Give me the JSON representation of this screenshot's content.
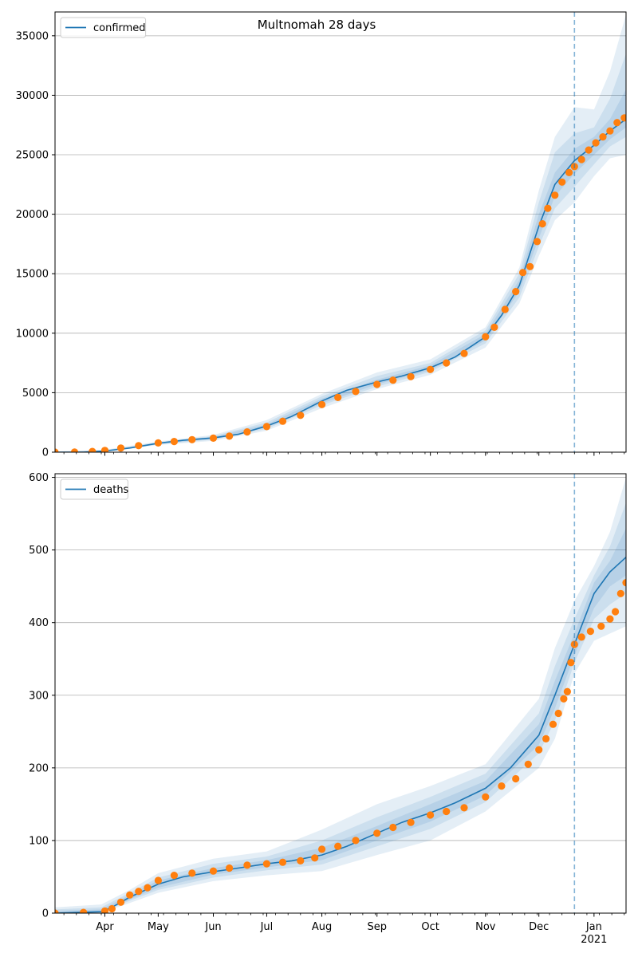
{
  "title": "Multnomah 28 days",
  "colors": {
    "model": "#1f77b4",
    "observed": "#ff7f0e",
    "band": "#1f77b4",
    "grid": "#b0b0b0"
  },
  "chart_data": [
    {
      "type": "line",
      "title": "Multnomah 28 days",
      "legend": [
        "confirmed"
      ],
      "legend_position": "top-left",
      "grid": "horizontal",
      "x_range": [
        "2020-03-04",
        "2021-01-19"
      ],
      "xticks": [
        {
          "date": "2020-04-01",
          "label": "Apr"
        },
        {
          "date": "2020-05-01",
          "label": "May"
        },
        {
          "date": "2020-06-01",
          "label": "Jun"
        },
        {
          "date": "2020-07-01",
          "label": "Jul"
        },
        {
          "date": "2020-08-01",
          "label": "Aug"
        },
        {
          "date": "2020-09-01",
          "label": "Sep"
        },
        {
          "date": "2020-10-01",
          "label": "Oct"
        },
        {
          "date": "2020-11-01",
          "label": "Nov"
        },
        {
          "date": "2020-12-01",
          "label": "Dec"
        },
        {
          "date": "2021-01-01",
          "label": "Jan",
          "sublabel": "2021"
        }
      ],
      "ylim": [
        0,
        37000
      ],
      "yticks": [
        "0",
        "5000",
        "10000",
        "15000",
        "20000",
        "25000",
        "30000",
        "35000"
      ],
      "forecast_start": "2020-12-21",
      "series": [
        {
          "name": "confirmed",
          "style": "model-line",
          "x": [
            "2020-03-04",
            "2020-03-20",
            "2020-04-01",
            "2020-04-15",
            "2020-05-01",
            "2020-05-15",
            "2020-06-01",
            "2020-06-15",
            "2020-07-01",
            "2020-07-15",
            "2020-08-01",
            "2020-08-15",
            "2020-09-01",
            "2020-09-15",
            "2020-10-01",
            "2020-10-15",
            "2020-11-01",
            "2020-11-10",
            "2020-11-20",
            "2020-12-01",
            "2020-12-10",
            "2020-12-21",
            "2021-01-01",
            "2021-01-10",
            "2021-01-19"
          ],
          "y": [
            0,
            0,
            100,
            350,
            750,
            1000,
            1200,
            1500,
            2200,
            3000,
            4300,
            5200,
            5900,
            6400,
            7100,
            8000,
            9700,
            11500,
            14000,
            19000,
            22500,
            24500,
            25800,
            27000,
            28000
          ]
        },
        {
          "name": "observed",
          "style": "points",
          "x": [
            "2020-03-04",
            "2020-03-15",
            "2020-03-25",
            "2020-04-01",
            "2020-04-10",
            "2020-04-20",
            "2020-05-01",
            "2020-05-10",
            "2020-05-20",
            "2020-06-01",
            "2020-06-10",
            "2020-06-20",
            "2020-07-01",
            "2020-07-10",
            "2020-07-20",
            "2020-08-01",
            "2020-08-10",
            "2020-08-20",
            "2020-09-01",
            "2020-09-10",
            "2020-09-20",
            "2020-10-01",
            "2020-10-10",
            "2020-10-20",
            "2020-11-01",
            "2020-11-06",
            "2020-11-12",
            "2020-11-18",
            "2020-11-22",
            "2020-11-26",
            "2020-11-30",
            "2020-12-03",
            "2020-12-06",
            "2020-12-10",
            "2020-12-14",
            "2020-12-18",
            "2020-12-21",
            "2020-12-25",
            "2020-12-29",
            "2021-01-02",
            "2021-01-06",
            "2021-01-10",
            "2021-01-14",
            "2021-01-18"
          ],
          "y": [
            0,
            10,
            60,
            150,
            350,
            550,
            780,
            900,
            1050,
            1180,
            1350,
            1700,
            2150,
            2600,
            3100,
            4000,
            4600,
            5100,
            5700,
            6050,
            6350,
            6950,
            7500,
            8300,
            9700,
            10500,
            12000,
            13500,
            15100,
            15600,
            17700,
            19200,
            20500,
            21600,
            22700,
            23500,
            24000,
            24600,
            25400,
            26000,
            26500,
            27000,
            27700,
            28100
          ]
        }
      ],
      "bands": [
        {
          "x": [
            "2020-03-04",
            "2020-04-01",
            "2020-05-01",
            "2020-06-01",
            "2020-07-01",
            "2020-08-01",
            "2020-09-01",
            "2020-10-01",
            "2020-11-01",
            "2020-11-20",
            "2020-12-01",
            "2020-12-10",
            "2020-12-21",
            "2021-01-01",
            "2021-01-10",
            "2021-01-19"
          ],
          "lo": [
            0,
            50,
            600,
            950,
            1800,
            3700,
            5300,
            6500,
            8800,
            12500,
            16500,
            19500,
            21000,
            23200,
            24700,
            25000
          ],
          "hi": [
            50,
            200,
            900,
            1450,
            2700,
            4900,
            6700,
            7800,
            10500,
            15500,
            22000,
            26500,
            29000,
            28800,
            32000,
            36800
          ]
        },
        {
          "x": [
            "2020-03-04",
            "2020-04-01",
            "2020-05-01",
            "2020-06-01",
            "2020-07-01",
            "2020-08-01",
            "2020-09-01",
            "2020-10-01",
            "2020-11-01",
            "2020-11-20",
            "2020-12-01",
            "2020-12-10",
            "2020-12-21",
            "2021-01-01",
            "2021-01-10",
            "2021-01-19"
          ],
          "lo": [
            0,
            70,
            660,
            1050,
            1950,
            3950,
            5500,
            6750,
            9150,
            13000,
            17300,
            20500,
            22300,
            24200,
            25700,
            26500
          ],
          "hi": [
            30,
            170,
            840,
            1350,
            2500,
            4700,
            6400,
            7500,
            10250,
            15000,
            21000,
            25200,
            26800,
            27300,
            29700,
            33500
          ]
        },
        {
          "x": [
            "2020-03-04",
            "2020-04-01",
            "2020-05-01",
            "2020-06-01",
            "2020-07-01",
            "2020-08-01",
            "2020-09-01",
            "2020-10-01",
            "2020-11-01",
            "2020-11-20",
            "2020-12-01",
            "2020-12-10",
            "2020-12-21",
            "2021-01-01",
            "2021-01-10",
            "2021-01-19"
          ],
          "lo": [
            0,
            85,
            710,
            1120,
            2080,
            4100,
            5700,
            6900,
            9400,
            13500,
            18000,
            21500,
            23400,
            25000,
            26300,
            27300
          ],
          "hi": [
            15,
            130,
            790,
            1280,
            2330,
            4500,
            6100,
            7300,
            9950,
            14500,
            20000,
            23500,
            25500,
            26500,
            28000,
            30500
          ]
        }
      ]
    },
    {
      "type": "line",
      "legend": [
        "deaths"
      ],
      "legend_position": "top-left",
      "grid": "horizontal",
      "x_range": [
        "2020-03-04",
        "2021-01-19"
      ],
      "ylim": [
        0,
        605
      ],
      "yticks": [
        "0",
        "100",
        "200",
        "300",
        "400",
        "500",
        "600"
      ],
      "forecast_start": "2020-12-21",
      "series": [
        {
          "name": "deaths",
          "style": "model-line",
          "x": [
            "2020-03-04",
            "2020-03-30",
            "2020-04-05",
            "2020-04-15",
            "2020-05-01",
            "2020-05-15",
            "2020-06-01",
            "2020-06-15",
            "2020-07-01",
            "2020-07-15",
            "2020-08-01",
            "2020-08-15",
            "2020-09-01",
            "2020-09-15",
            "2020-10-01",
            "2020-10-15",
            "2020-11-01",
            "2020-11-15",
            "2020-12-01",
            "2020-12-10",
            "2020-12-21",
            "2021-01-01",
            "2021-01-10",
            "2021-01-19"
          ],
          "y": [
            0,
            2,
            8,
            22,
            40,
            50,
            57,
            62,
            68,
            72,
            80,
            92,
            110,
            125,
            138,
            152,
            172,
            200,
            245,
            300,
            370,
            440,
            470,
            490
          ]
        },
        {
          "name": "observed",
          "style": "points",
          "x": [
            "2020-03-04",
            "2020-03-20",
            "2020-04-01",
            "2020-04-05",
            "2020-04-10",
            "2020-04-15",
            "2020-04-20",
            "2020-04-25",
            "2020-05-01",
            "2020-05-10",
            "2020-05-20",
            "2020-06-01",
            "2020-06-10",
            "2020-06-20",
            "2020-07-01",
            "2020-07-10",
            "2020-07-20",
            "2020-07-28",
            "2020-08-01",
            "2020-08-10",
            "2020-08-20",
            "2020-09-01",
            "2020-09-10",
            "2020-09-20",
            "2020-10-01",
            "2020-10-10",
            "2020-10-20",
            "2020-11-01",
            "2020-11-10",
            "2020-11-18",
            "2020-11-25",
            "2020-12-01",
            "2020-12-05",
            "2020-12-09",
            "2020-12-12",
            "2020-12-15",
            "2020-12-17",
            "2020-12-19",
            "2020-12-21",
            "2020-12-25",
            "2020-12-30",
            "2021-01-05",
            "2021-01-10",
            "2021-01-13",
            "2021-01-16",
            "2021-01-19"
          ],
          "y": [
            0,
            1,
            3,
            6,
            15,
            25,
            30,
            35,
            45,
            52,
            55,
            58,
            62,
            66,
            68,
            70,
            72,
            76,
            88,
            92,
            100,
            110,
            118,
            125,
            135,
            140,
            145,
            160,
            175,
            185,
            205,
            225,
            240,
            260,
            275,
            295,
            305,
            345,
            370,
            380,
            388,
            395,
            405,
            415,
            440,
            455
          ]
        }
      ],
      "bands": [
        {
          "x": [
            "2020-03-04",
            "2020-03-30",
            "2020-04-15",
            "2020-05-01",
            "2020-06-01",
            "2020-07-01",
            "2020-08-01",
            "2020-09-01",
            "2020-10-01",
            "2020-11-01",
            "2020-12-01",
            "2020-12-10",
            "2020-12-21",
            "2021-01-01",
            "2021-01-10",
            "2021-01-19"
          ],
          "lo": [
            0,
            0,
            14,
            28,
            44,
            52,
            58,
            80,
            100,
            140,
            200,
            240,
            330,
            375,
            385,
            395
          ],
          "hi": [
            8,
            12,
            32,
            55,
            75,
            85,
            115,
            150,
            175,
            205,
            295,
            365,
            430,
            478,
            525,
            600
          ]
        },
        {
          "x": [
            "2020-03-04",
            "2020-03-30",
            "2020-04-15",
            "2020-05-01",
            "2020-06-01",
            "2020-07-01",
            "2020-08-01",
            "2020-09-01",
            "2020-10-01",
            "2020-11-01",
            "2020-12-01",
            "2020-12-10",
            "2020-12-21",
            "2021-01-01",
            "2021-01-10",
            "2021-01-19"
          ],
          "lo": [
            0,
            1,
            17,
            32,
            49,
            59,
            67,
            92,
            116,
            153,
            220,
            265,
            345,
            405,
            425,
            440
          ],
          "hi": [
            5,
            8,
            28,
            49,
            68,
            78,
            100,
            132,
            160,
            192,
            275,
            340,
            405,
            465,
            505,
            565
          ]
        },
        {
          "x": [
            "2020-03-04",
            "2020-03-30",
            "2020-04-15",
            "2020-05-01",
            "2020-06-01",
            "2020-07-01",
            "2020-08-01",
            "2020-09-01",
            "2020-10-01",
            "2020-11-01",
            "2020-12-01",
            "2020-12-10",
            "2020-12-21",
            "2021-01-01",
            "2021-01-10",
            "2021-01-19"
          ],
          "lo": [
            0,
            1,
            19,
            35,
            53,
            63,
            73,
            100,
            126,
            162,
            232,
            282,
            355,
            420,
            450,
            465
          ],
          "hi": [
            3,
            5,
            25,
            45,
            62,
            73,
            90,
            120,
            150,
            182,
            260,
            320,
            385,
            455,
            485,
            530
          ]
        }
      ]
    }
  ]
}
